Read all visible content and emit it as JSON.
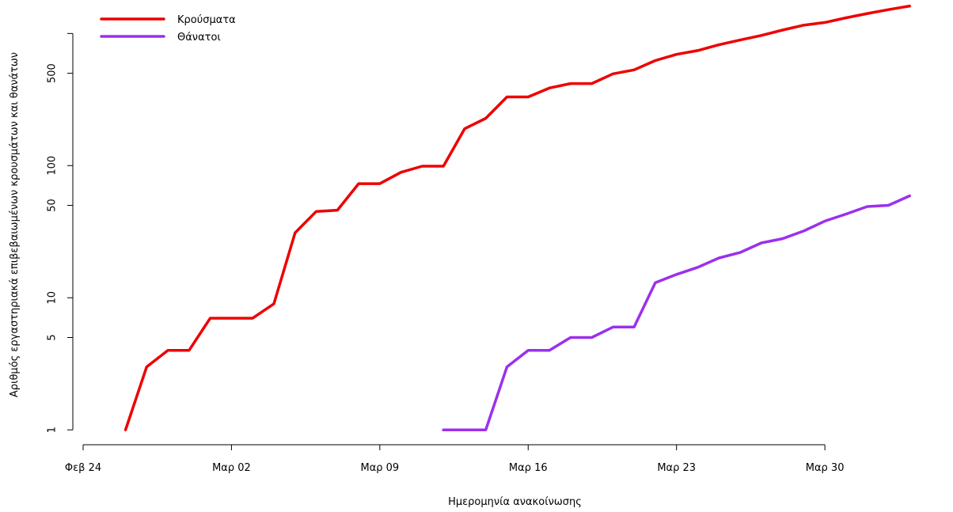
{
  "chart_data": {
    "type": "line",
    "title": "",
    "xlabel": "Ημερομηνία ανακοίνωσης",
    "ylabel": "Αριθμός εργαστηριακά επιβεβαιωμένων κρουσμάτων και θανάτων",
    "yscale": "log",
    "ylim": [
      0.85,
      1650
    ],
    "xlim": [
      "2020-02-24",
      "2020-04-04"
    ],
    "x_ticks": [
      {
        "label": "Φεβ 24",
        "date": "2020-02-24"
      },
      {
        "label": "Μαρ 02",
        "date": "2020-03-02"
      },
      {
        "label": "Μαρ 09",
        "date": "2020-03-09"
      },
      {
        "label": "Μαρ 16",
        "date": "2020-03-16"
      },
      {
        "label": "Μαρ 23",
        "date": "2020-03-23"
      },
      {
        "label": "Μαρ 30",
        "date": "2020-03-30"
      }
    ],
    "y_ticks": [
      {
        "label": "1",
        "value": 1
      },
      {
        "label": "5",
        "value": 5
      },
      {
        "label": "10",
        "value": 10
      },
      {
        "label": "50",
        "value": 50
      },
      {
        "label": "100",
        "value": 100
      },
      {
        "label": "500",
        "value": 500
      },
      {
        "label": "",
        "value": 1000
      }
    ],
    "grid": false,
    "legend_position": "top-left",
    "series": [
      {
        "name": "Κρούσματα",
        "color": "#ee0000",
        "x": [
          "2020-02-26",
          "2020-02-27",
          "2020-02-28",
          "2020-02-29",
          "2020-03-01",
          "2020-03-02",
          "2020-03-03",
          "2020-03-04",
          "2020-03-05",
          "2020-03-06",
          "2020-03-07",
          "2020-03-08",
          "2020-03-09",
          "2020-03-10",
          "2020-03-11",
          "2020-03-12",
          "2020-03-13",
          "2020-03-14",
          "2020-03-15",
          "2020-03-16",
          "2020-03-17",
          "2020-03-18",
          "2020-03-19",
          "2020-03-20",
          "2020-03-21",
          "2020-03-22",
          "2020-03-23",
          "2020-03-24",
          "2020-03-25",
          "2020-03-26",
          "2020-03-27",
          "2020-03-28",
          "2020-03-29",
          "2020-03-30",
          "2020-03-31",
          "2020-04-01",
          "2020-04-02",
          "2020-04-03"
        ],
        "values": [
          1,
          3,
          4,
          4,
          7,
          7,
          7,
          9,
          31,
          45,
          46,
          73,
          73,
          89,
          99,
          99,
          190,
          228,
          331,
          331,
          387,
          418,
          418,
          495,
          530,
          624,
          695,
          743,
          821,
          892,
          966,
          1061,
          1156,
          1212,
          1314,
          1415,
          1514,
          1613
        ]
      },
      {
        "name": "Θάνατοι",
        "color": "#9b30ee",
        "x": [
          "2020-03-12",
          "2020-03-13",
          "2020-03-14",
          "2020-03-15",
          "2020-03-16",
          "2020-03-17",
          "2020-03-18",
          "2020-03-19",
          "2020-03-20",
          "2020-03-21",
          "2020-03-22",
          "2020-03-23",
          "2020-03-24",
          "2020-03-25",
          "2020-03-26",
          "2020-03-27",
          "2020-03-28",
          "2020-03-29",
          "2020-03-30",
          "2020-03-31",
          "2020-04-01",
          "2020-04-02",
          "2020-04-03"
        ],
        "values": [
          1,
          1,
          1,
          3,
          4,
          4,
          5,
          5,
          6,
          6,
          13,
          15,
          17,
          20,
          22,
          26,
          28,
          32,
          38,
          43,
          49,
          50,
          59
        ]
      }
    ]
  }
}
